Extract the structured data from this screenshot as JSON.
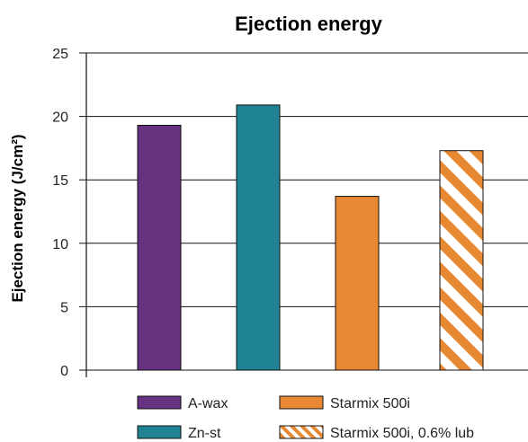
{
  "chart_data": {
    "type": "bar",
    "title": "Ejection energy",
    "xlabel": "",
    "ylabel": "Ejection energy (J/cm²)",
    "ylim": [
      0,
      25
    ],
    "yticks": [
      0,
      5,
      10,
      15,
      20,
      25
    ],
    "grid": true,
    "legend_position": "bottom",
    "categories": [
      "A-wax",
      "Zn-st",
      "Starmix 500i",
      "Starmix 500i, 0.6% lub"
    ],
    "values": [
      19.3,
      20.9,
      13.7,
      17.3
    ],
    "colors": [
      "#66317e",
      "#1f8394",
      "#e78833",
      "#e78833"
    ],
    "patterns": [
      "solid",
      "solid",
      "solid",
      "hatched"
    ],
    "legend": [
      {
        "label": "A-wax",
        "color": "#66317e",
        "pattern": "solid"
      },
      {
        "label": "Starmix 500i",
        "color": "#e78833",
        "pattern": "solid"
      },
      {
        "label": "Zn-st",
        "color": "#1f8394",
        "pattern": "solid"
      },
      {
        "label": "Starmix 500i, 0.6% lub",
        "color": "#e78833",
        "pattern": "hatched"
      }
    ]
  }
}
